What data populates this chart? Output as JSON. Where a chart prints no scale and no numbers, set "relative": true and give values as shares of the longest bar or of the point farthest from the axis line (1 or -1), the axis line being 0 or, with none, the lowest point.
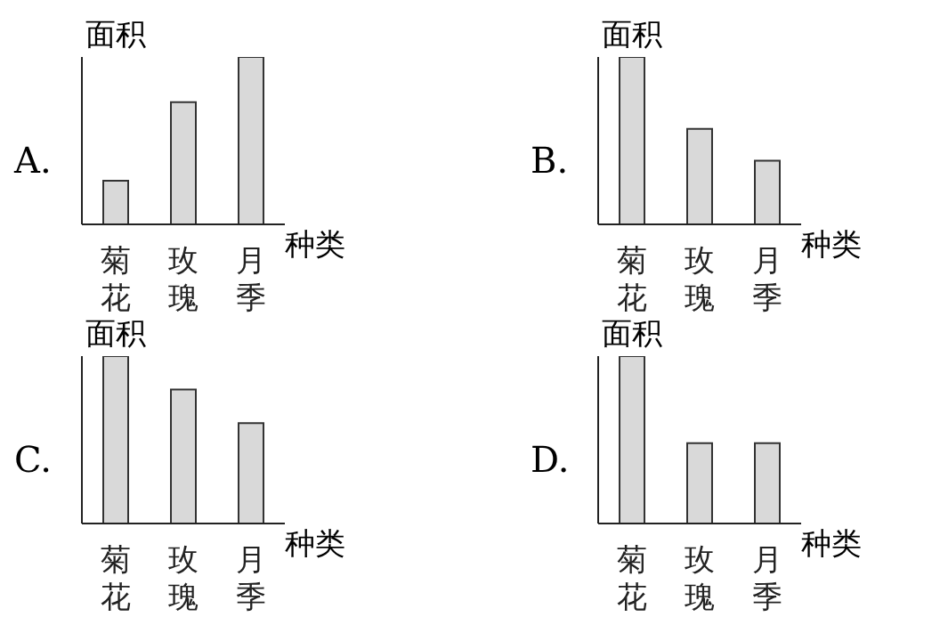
{
  "chart_data": [
    {
      "type": "bar",
      "title": "A.",
      "ylabel": "面积",
      "xlabel": "种类",
      "categories": [
        "菊花",
        "玫瑰",
        "月季"
      ],
      "relative": true,
      "color": "#d9d9d9",
      "values": [
        0.26,
        0.73,
        1
      ]
    },
    {
      "type": "bar",
      "title": "B.",
      "ylabel": "面积",
      "xlabel": "种类",
      "categories": [
        "菊花",
        "玫瑰",
        "月季"
      ],
      "relative": true,
      "color": "#d9d9d9",
      "values": [
        1,
        0.57,
        0.38
      ]
    },
    {
      "type": "bar",
      "title": "C.",
      "ylabel": "面积",
      "xlabel": "种类",
      "categories": [
        "菊花",
        "玫瑰",
        "月季"
      ],
      "relative": true,
      "color": "#d9d9d9",
      "values": [
        1,
        0.8,
        0.6
      ]
    },
    {
      "type": "bar",
      "title": "D.",
      "ylabel": "面积",
      "xlabel": "种类",
      "categories": [
        "菊花",
        "玫瑰",
        "月季"
      ],
      "relative": true,
      "color": "#d9d9d9",
      "values": [
        1,
        0.48,
        0.48
      ]
    }
  ]
}
